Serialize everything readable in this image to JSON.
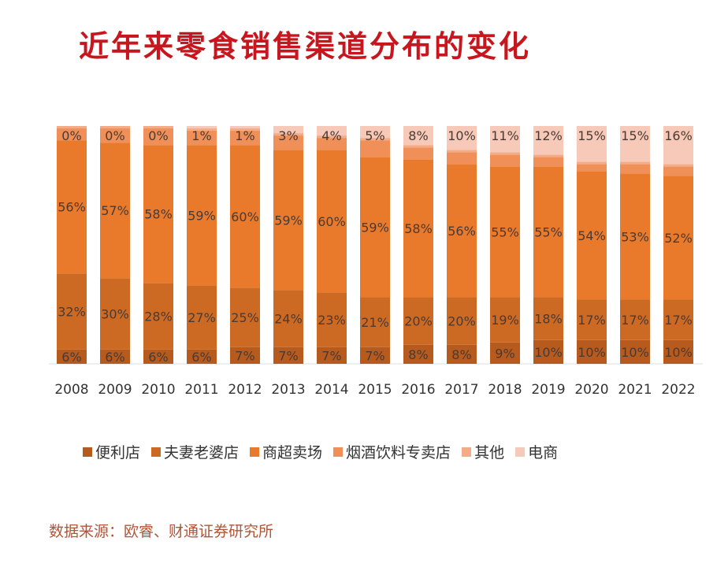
{
  "chart_data": {
    "type": "bar",
    "stacked": true,
    "title": "近年来零食销售渠道分布的变化",
    "categories": [
      "2008",
      "2009",
      "2010",
      "2011",
      "2012",
      "2013",
      "2014",
      "2015",
      "2016",
      "2017",
      "2018",
      "2019",
      "2020",
      "2021",
      "2022"
    ],
    "ylim": [
      0,
      100
    ],
    "series": [
      {
        "name": "便利店",
        "color": "#b65a1e",
        "labeled": true,
        "values": [
          6,
          6,
          6,
          6,
          7,
          7,
          7,
          7,
          8,
          8,
          9,
          10,
          10,
          10,
          10
        ]
      },
      {
        "name": "夫妻老婆店",
        "color": "#cc6a24",
        "labeled": true,
        "values": [
          32,
          30,
          28,
          27,
          25,
          24,
          23,
          21,
          20,
          20,
          19,
          18,
          17,
          17,
          17
        ]
      },
      {
        "name": "商超卖场",
        "color": "#e97a2c",
        "labeled": true,
        "values": [
          56,
          57,
          58,
          59,
          60,
          59,
          60,
          59,
          58,
          56,
          55,
          55,
          54,
          53,
          52
        ]
      },
      {
        "name": "烟酒饮料专卖店",
        "color": "#f09058",
        "labeled": false,
        "values": [
          5,
          6,
          7,
          6,
          6,
          6,
          5,
          7,
          5,
          5,
          5,
          4,
          3,
          4,
          4
        ]
      },
      {
        "name": "其他",
        "color": "#f4ac88",
        "labeled": false,
        "values": [
          1,
          1,
          1,
          1,
          1,
          1,
          1,
          1,
          1,
          1,
          1,
          1,
          1,
          1,
          1
        ]
      },
      {
        "name": "电商",
        "color": "#f6c9b8",
        "labeled": true,
        "values": [
          0,
          0,
          0,
          1,
          1,
          3,
          4,
          5,
          8,
          10,
          11,
          12,
          15,
          15,
          16
        ]
      }
    ],
    "legend_position": "bottom"
  },
  "source": "数据来源：欧睿、财通证券研究所"
}
